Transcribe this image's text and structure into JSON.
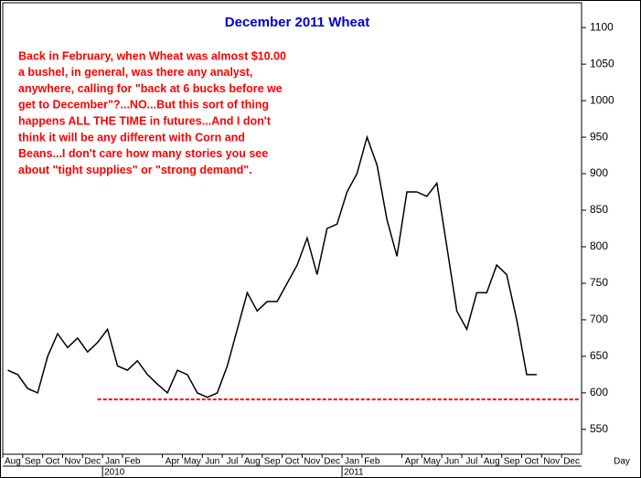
{
  "chart_data": {
    "type": "line",
    "title": "December 2011 Wheat",
    "annotation_lines": [
      "Back in February, when Wheat was almost $10.00",
      "a bushel, in general, was there any analyst,",
      "anywhere, calling for \"back at 6 bucks before we",
      "get to December\"?...NO...But this sort of thing",
      "happens ALL THE TIME in futures...And I don't",
      "think it will be any different with Corn and",
      "Beans...I don't care how many stories you see",
      "about \"tight supplies\" or \"strong demand\"."
    ],
    "categories": [
      "Aug",
      null,
      "Sep",
      null,
      "Oct",
      null,
      "Nov",
      null,
      "Dec",
      null,
      "Jan",
      null,
      "Feb",
      null,
      null,
      null,
      "Apr",
      null,
      "May",
      null,
      "Jun",
      null,
      "Jul",
      null,
      "Aug",
      null,
      "Sep",
      null,
      "Oct",
      null,
      "Nov",
      null,
      "Dec",
      null,
      "Jan",
      null,
      "Feb",
      null,
      null,
      null,
      "Apr",
      null,
      "May",
      null,
      "Jun",
      null,
      "Jul",
      null,
      "Aug",
      null,
      "Sep",
      null,
      "Oct",
      null,
      "Nov",
      null,
      "Dec",
      null
    ],
    "years": [
      "2010",
      "2011"
    ],
    "period_label": "Day",
    "series": [
      {
        "color": "#000000",
        "values": [
          631,
          625,
          606,
          600,
          650,
          681,
          662,
          675,
          656,
          669,
          687,
          637,
          631,
          644,
          625,
          612,
          600,
          631,
          625,
          600,
          594,
          600,
          637,
          687,
          737,
          712,
          725,
          725,
          750,
          775,
          812,
          762,
          825,
          831,
          875,
          900,
          950,
          912,
          837,
          787,
          875,
          875,
          869,
          887,
          800,
          712,
          687,
          737,
          737,
          775,
          762,
          700,
          625,
          625,
          null,
          null,
          null,
          null
        ]
      }
    ],
    "reference_line": {
      "value": 591,
      "color": "#ff0000"
    },
    "ylim": [
      516,
      1134
    ],
    "yticks": [
      550,
      600,
      650,
      700,
      750,
      800,
      850,
      900,
      950,
      1000,
      1050,
      1100
    ]
  }
}
